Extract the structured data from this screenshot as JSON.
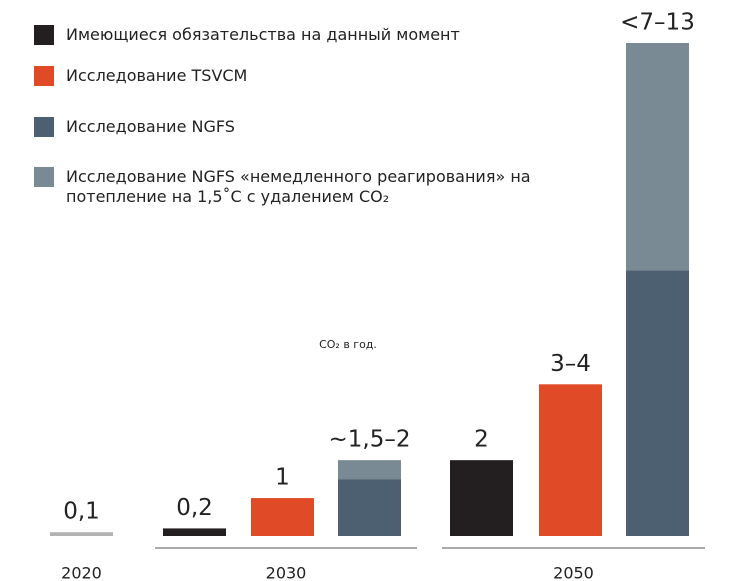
{
  "chart_data": {
    "type": "bar",
    "annotation": "CO₂ в год.",
    "ylim": [
      0,
      13
    ],
    "series": [
      {
        "name": "Имеющиеся обязательства на данный момент",
        "color": "#231f20"
      },
      {
        "name": "Исследование TSVCM",
        "color": "#e04a26"
      },
      {
        "name": "Исследование NGFS",
        "color": "#4d6071"
      },
      {
        "name": "Исследование NGFS «немедленного реагирования» на потепление на 1,5˚C с удалением CO₂",
        "color": "#7a8a94"
      }
    ],
    "groups": [
      {
        "label": "2020",
        "bars": [
          {
            "color": "#b3b3b3",
            "values": [
              0.1
            ],
            "value_label": "0,1"
          }
        ]
      },
      {
        "label": "2030",
        "bars": [
          {
            "series": [
              0
            ],
            "values": [
              0.2
            ],
            "value_label": "0,2"
          },
          {
            "series": [
              1
            ],
            "values": [
              1
            ],
            "value_label": "1"
          },
          {
            "series": [
              2,
              3
            ],
            "values": [
              1.5,
              0.5
            ],
            "value_label": "~1,5–2"
          }
        ]
      },
      {
        "label": "2050",
        "bars": [
          {
            "series": [
              0
            ],
            "values": [
              2
            ],
            "value_label": "2"
          },
          {
            "series": [
              1
            ],
            "values": [
              4
            ],
            "value_label": "3–4"
          },
          {
            "series": [
              2,
              3
            ],
            "values": [
              7,
              6
            ],
            "value_label": "<7–13"
          }
        ]
      }
    ]
  }
}
